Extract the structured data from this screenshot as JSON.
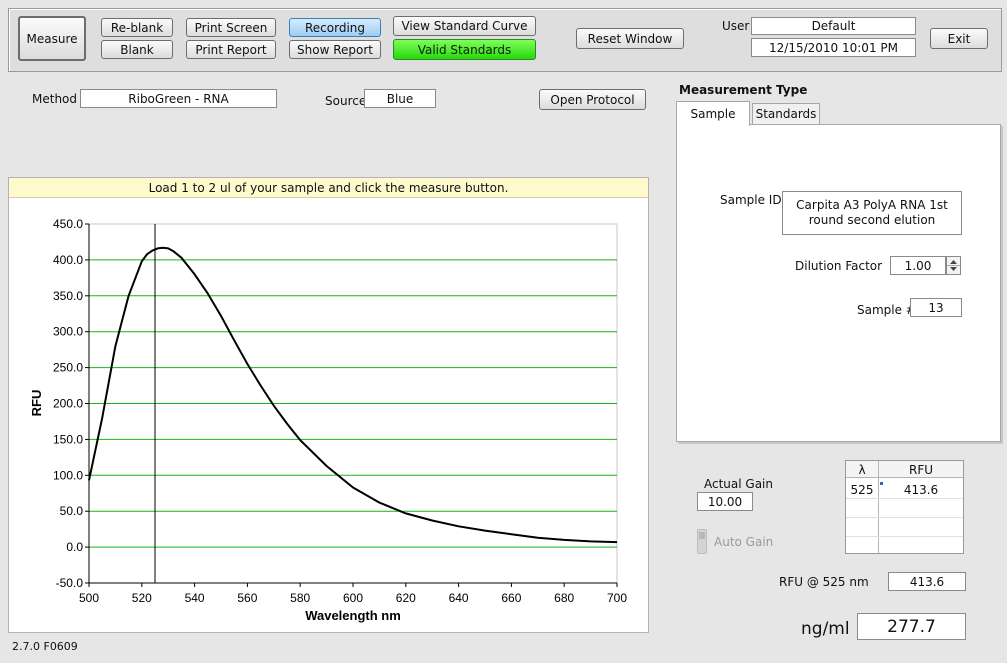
{
  "toolbar": {
    "measure_label": "Measure",
    "reblank_label": "Re-blank",
    "blank_label": "Blank",
    "print_screen_label": "Print Screen",
    "print_report_label": "Print Report",
    "recording_label": "Recording",
    "show_report_label": "Show Report",
    "view_standard_curve_label": "View Standard Curve",
    "valid_standards_label": "Valid Standards",
    "reset_window_label": "Reset Window",
    "user_label": "User",
    "user_value": "Default",
    "datetime_value": "12/15/2010  10:01 PM",
    "exit_label": "Exit",
    "colors": {
      "recording": "#9ccdf2",
      "valid_standards": "#27d80d"
    }
  },
  "method": {
    "label": "Method",
    "value": "RiboGreen - RNA"
  },
  "source": {
    "label": "Source",
    "value": "Blue"
  },
  "open_protocol_label": "Open Protocol",
  "instruction_banner": "Load 1 to 2 ul of your sample and click the measure button.",
  "measurement_type": {
    "heading": "Measurement Type",
    "tabs": [
      {
        "label": "Sample"
      },
      {
        "label": "Standards"
      }
    ],
    "sample_id_label": "Sample ID",
    "sample_id_value": "Carpita A3 PolyA RNA 1st round second elution",
    "dilution_factor_label": "Dilution Factor",
    "dilution_factor_value": "1.00",
    "sample_number_label": "Sample #",
    "sample_number_value": "13"
  },
  "gain": {
    "actual_gain_label": "Actual Gain",
    "actual_gain_value": "10.00",
    "auto_gain_label": "Auto Gain"
  },
  "rfu_table": {
    "headers": [
      "λ",
      "RFU"
    ],
    "rows": [
      [
        "525",
        "413.6"
      ]
    ]
  },
  "rfu_at": {
    "label": "RFU @ 525 nm",
    "value": "413.6"
  },
  "concentration": {
    "label": "ng/ml",
    "value": "277.7"
  },
  "version": "2.7.0 F0609",
  "chart_data": {
    "type": "line",
    "xlabel": "Wavelength  nm",
    "ylabel": "RFU",
    "xlim": [
      500,
      700
    ],
    "ylim": [
      -50,
      450
    ],
    "xticks": [
      500,
      520,
      540,
      560,
      580,
      600,
      620,
      640,
      660,
      680,
      700
    ],
    "yticks": [
      -50,
      0,
      50,
      100,
      150,
      200,
      250,
      300,
      350,
      400,
      450
    ],
    "xtick_labels": [
      "500",
      "520",
      "540",
      "560",
      "580",
      "600",
      "620",
      "640",
      "660",
      "680",
      "700"
    ],
    "ytick_labels": [
      "-50.0",
      "0.0",
      "50.0",
      "100.0",
      "150.0",
      "200.0",
      "250.0",
      "300.0",
      "350.0",
      "400.0",
      "450.0"
    ],
    "grid": "horizontal",
    "grid_color": "#19b419",
    "marker_x": 525,
    "series": [
      {
        "x": [
          500,
          505,
          510,
          515,
          520,
          522,
          524,
          526,
          528,
          530,
          532,
          535,
          540,
          545,
          550,
          555,
          560,
          565,
          570,
          575,
          580,
          590,
          600,
          610,
          620,
          630,
          640,
          650,
          660,
          670,
          680,
          690,
          700
        ],
        "y": [
          93,
          180,
          280,
          350,
          398,
          408,
          413,
          416,
          417,
          416,
          412,
          403,
          380,
          353,
          322,
          288,
          255,
          225,
          197,
          172,
          149,
          113,
          83,
          62,
          47,
          37,
          29,
          23,
          18,
          13,
          10,
          8,
          7
        ]
      }
    ]
  }
}
